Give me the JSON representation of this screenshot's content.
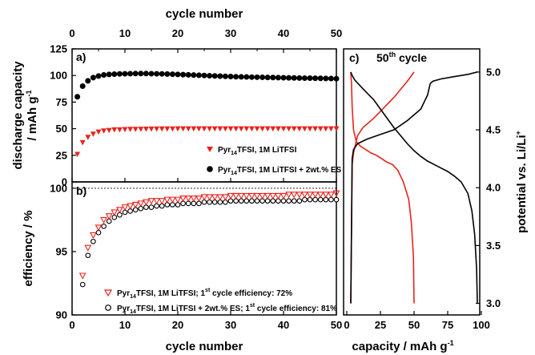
{
  "chart_data": [
    {
      "panel": "a)",
      "type": "scatter",
      "xlabel_top": "cycle number",
      "ylabel_line1": "discharge capacity",
      "ylabel_line2": "/ mAh g",
      "ylabel_sup": "-1",
      "xlim": [
        0,
        50
      ],
      "ylim": [
        0,
        125
      ],
      "xticks": [
        0,
        10,
        20,
        30,
        40,
        50
      ],
      "yticks": [
        0,
        25,
        50,
        75,
        100,
        125
      ],
      "series": [
        {
          "legend_prefix": "Pyr",
          "legend_sub": "14",
          "legend_suffix": "TFSI, 1M LiTFSI",
          "marker": "triangle-down-filled",
          "color": "#e8231c",
          "x": [
            1,
            2,
            3,
            4,
            5,
            6,
            7,
            8,
            9,
            10,
            11,
            12,
            13,
            14,
            15,
            16,
            17,
            18,
            19,
            20,
            21,
            22,
            23,
            24,
            25,
            26,
            27,
            28,
            29,
            30,
            31,
            32,
            33,
            34,
            35,
            36,
            37,
            38,
            39,
            40,
            41,
            42,
            43,
            44,
            45,
            46,
            47,
            48,
            49,
            50
          ],
          "y": [
            26,
            37,
            42,
            45,
            47,
            48,
            48.5,
            49,
            49,
            49.3,
            49.5,
            49.5,
            49.6,
            49.7,
            49.8,
            49.8,
            49.9,
            49.9,
            49.9,
            50,
            50,
            50,
            50,
            50,
            50,
            50,
            50,
            50,
            50,
            50,
            50,
            50,
            50,
            50,
            50,
            50,
            50,
            50,
            50,
            50,
            50,
            50,
            50,
            50,
            50,
            50,
            50,
            50,
            50,
            50
          ]
        },
        {
          "legend_prefix": "Pyr",
          "legend_sub": "14",
          "legend_suffix": "TFSI, 1M LiTFSI + 2wt.% ES",
          "marker": "circle-filled",
          "color": "#000000",
          "x": [
            1,
            2,
            3,
            4,
            5,
            6,
            7,
            8,
            9,
            10,
            11,
            12,
            13,
            14,
            15,
            16,
            17,
            18,
            19,
            20,
            21,
            22,
            23,
            24,
            25,
            26,
            27,
            28,
            29,
            30,
            31,
            32,
            33,
            34,
            35,
            36,
            37,
            38,
            39,
            40,
            41,
            42,
            43,
            44,
            45,
            46,
            47,
            48,
            49,
            50
          ],
          "y": [
            80,
            90,
            95,
            98,
            99.5,
            100.5,
            101,
            101.3,
            101.5,
            101.6,
            101.7,
            101.8,
            101.8,
            101.8,
            101.7,
            101.6,
            101.5,
            101.4,
            101.2,
            101,
            100.8,
            100.6,
            100.4,
            100.2,
            100,
            99.8,
            99.6,
            99.4,
            99.2,
            99,
            98.8,
            98.7,
            98.6,
            98.5,
            98.4,
            98.3,
            98.2,
            98.1,
            98,
            97.9,
            97.8,
            97.7,
            97.6,
            97.5,
            97.5,
            97.4,
            97.3,
            97.2,
            97.1,
            97
          ]
        }
      ]
    },
    {
      "panel": "b)",
      "type": "scatter",
      "xlabel": "cycle number",
      "ylabel": "efficiency / %",
      "xlim": [
        0,
        50
      ],
      "ylim": [
        90,
        100.5
      ],
      "xticks": [
        0,
        10,
        20,
        30,
        40,
        50
      ],
      "yticks": [
        90,
        95,
        100
      ],
      "reference_line": 100,
      "series": [
        {
          "legend_prefix": "Pyr",
          "legend_sub": "14",
          "legend_mid": "TFSI, 1M LiTFSI; 1",
          "legend_sup": "st",
          "legend_suffix": " cycle efficiency: 72%",
          "marker": "triangle-down-open",
          "color": "#e8231c",
          "x": [
            2,
            3,
            4,
            5,
            6,
            7,
            8,
            9,
            10,
            11,
            12,
            13,
            14,
            15,
            16,
            17,
            18,
            19,
            20,
            21,
            22,
            23,
            24,
            25,
            26,
            27,
            28,
            29,
            30,
            31,
            32,
            33,
            34,
            35,
            36,
            37,
            38,
            39,
            40,
            41,
            42,
            43,
            44,
            45,
            46,
            47,
            48,
            49,
            50
          ],
          "y": [
            93.1,
            95.3,
            96.3,
            96.9,
            97.5,
            97.8,
            98.1,
            98.3,
            98.5,
            98.6,
            98.7,
            98.8,
            98.9,
            99,
            99,
            99,
            99.1,
            99.1,
            99.1,
            99.2,
            99.2,
            99.2,
            99.2,
            99.3,
            99.3,
            99.3,
            99.3,
            99.3,
            99.4,
            99.4,
            99.4,
            99.4,
            99.4,
            99.4,
            99.4,
            99.4,
            99.4,
            99.4,
            99.4,
            99.5,
            99.5,
            99.5,
            99.5,
            99.5,
            99.5,
            99.5,
            99.5,
            99.5,
            99.6
          ]
        },
        {
          "legend_prefix": "Pyr",
          "legend_sub": "14",
          "legend_mid": "TFSI, 1M LiTFSI + 2wt.% ES; 1",
          "legend_sup": "st",
          "legend_suffix": " cycle efficiency: 81%",
          "marker": "circle-open",
          "color": "#000000",
          "x": [
            2,
            3,
            4,
            5,
            6,
            7,
            8,
            9,
            10,
            11,
            12,
            13,
            14,
            15,
            16,
            17,
            18,
            19,
            20,
            21,
            22,
            23,
            24,
            25,
            26,
            27,
            28,
            29,
            30,
            31,
            32,
            33,
            34,
            35,
            36,
            37,
            38,
            39,
            40,
            41,
            42,
            43,
            44,
            45,
            46,
            47,
            48,
            49,
            50
          ],
          "y": [
            92.4,
            94.7,
            95.8,
            96.5,
            97,
            97.4,
            97.7,
            97.9,
            98.1,
            98.2,
            98.3,
            98.4,
            98.5,
            98.5,
            98.6,
            98.6,
            98.7,
            98.7,
            98.7,
            98.8,
            98.8,
            98.8,
            98.8,
            98.9,
            98.9,
            98.9,
            98.9,
            98.9,
            99,
            99,
            99,
            99,
            99,
            99,
            99,
            99,
            99,
            99,
            99,
            99,
            99,
            99,
            99.1,
            99.1,
            99.1,
            99.1,
            99.1,
            99.1,
            99.1
          ]
        }
      ]
    },
    {
      "panel": "c)",
      "type": "line",
      "title_prefix": "50",
      "title_sup": "th",
      "title_suffix": " cycle",
      "xlabel": "capacity / mAh g",
      "xlabel_sup": "-1",
      "ylabel": "potential vs. Li/Li",
      "ylabel_sup": "+",
      "xlim": [
        0,
        100
      ],
      "ylim": [
        2.9,
        5.2
      ],
      "xticks": [
        0,
        25,
        50,
        75,
        100
      ],
      "yticks": [
        3.0,
        3.5,
        4.0,
        4.5,
        5.0
      ],
      "series": [
        {
          "color": "#e8231c",
          "segments": [
            {
              "x": [
                50,
                49.5,
                48,
                46,
                42,
                38,
                34,
                30,
                26,
                22,
                18,
                14,
                10,
                7,
                5,
                4,
                3.5,
                3
              ],
              "y": [
                3.0,
                3.4,
                3.7,
                3.9,
                4.05,
                4.15,
                4.2,
                4.22,
                4.25,
                4.28,
                4.3,
                4.33,
                4.36,
                4.4,
                4.5,
                4.7,
                4.9,
                5.0
              ]
            },
            {
              "x": [
                3,
                4,
                5,
                8,
                12,
                16,
                20,
                25,
                30,
                35,
                40,
                45,
                50
              ],
              "y": [
                3.0,
                4.2,
                4.3,
                4.45,
                4.52,
                4.56,
                4.6,
                4.66,
                4.72,
                4.78,
                4.85,
                4.92,
                5.0
              ]
            }
          ]
        },
        {
          "color": "#000000",
          "segments": [
            {
              "x": [
                97,
                96.5,
                95,
                93,
                90,
                85,
                80,
                75,
                70,
                65,
                60,
                55,
                50,
                45,
                40,
                35,
                30,
                25,
                20,
                15,
                10,
                6,
                4,
                3
              ],
              "y": [
                3.0,
                3.3,
                3.6,
                3.8,
                3.95,
                4.05,
                4.1,
                4.14,
                4.17,
                4.2,
                4.23,
                4.27,
                4.32,
                4.38,
                4.45,
                4.52,
                4.6,
                4.68,
                4.76,
                4.82,
                4.88,
                4.93,
                4.97,
                5.0
              ]
            },
            {
              "x": [
                3,
                4,
                5,
                8,
                15,
                25,
                35,
                45,
                55,
                60,
                62,
                64,
                70,
                80,
                90,
                97
              ],
              "y": [
                3.0,
                4.25,
                4.33,
                4.38,
                4.42,
                4.46,
                4.5,
                4.58,
                4.68,
                4.8,
                4.9,
                4.92,
                4.94,
                4.96,
                4.98,
                5.0
              ]
            }
          ]
        }
      ]
    }
  ]
}
